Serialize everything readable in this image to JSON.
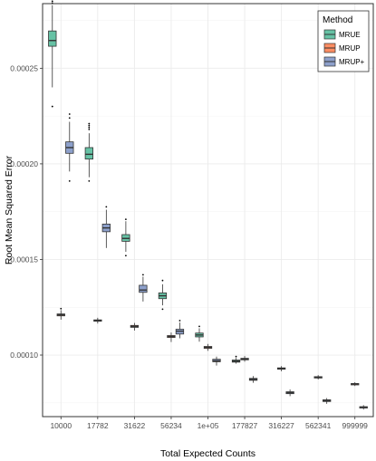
{
  "chart_data": {
    "type": "boxplot",
    "xlabel": "Total Expected Counts",
    "ylabel": "Root Mean Squared Error",
    "categories": [
      "10000",
      "17782",
      "31622",
      "56234",
      "1e+05",
      "177827",
      "316227",
      "562341",
      "999999"
    ],
    "y_ticks": [
      0.0001,
      0.00015,
      0.0002,
      0.00025
    ],
    "y_tick_labels": [
      "0.00010",
      "0.00015",
      "0.00020",
      "0.00025"
    ],
    "ylim": [
      6.78e-05,
      0.0002838
    ],
    "grid": true,
    "legend": {
      "title": "Method",
      "position": "top-right"
    },
    "series": [
      {
        "name": "MRUE",
        "color": "#66c2a5",
        "boxes": [
          {
            "whislo": 0.00024,
            "q1": 0.0002615,
            "med": 0.0002645,
            "q3": 0.0002695,
            "whishi": 0.000283,
            "outliers": [
              0.000284,
              0.000285,
              0.000286,
              0.000287,
              0.000289,
              0.00023
            ]
          },
          {
            "whislo": 0.000193,
            "q1": 0.0002025,
            "med": 0.000205,
            "q3": 0.0002085,
            "whishi": 0.000216,
            "outliers": [
              0.000218,
              0.000219,
              0.00022,
              0.000221,
              0.000191
            ]
          },
          {
            "whislo": 0.000154,
            "q1": 0.0001595,
            "med": 0.000161,
            "q3": 0.000163,
            "whishi": 0.00017,
            "outliers": [
              0.000171,
              0.000152
            ]
          },
          {
            "whislo": 0.000126,
            "q1": 0.0001295,
            "med": 0.000131,
            "q3": 0.0001325,
            "whishi": 0.000137,
            "outliers": [
              0.000139,
              0.000124
            ]
          },
          {
            "whislo": 0.000107,
            "q1": 0.0001095,
            "med": 0.0001105,
            "q3": 0.0001115,
            "whishi": 0.000114,
            "outliers": [
              0.000115
            ]
          },
          {
            "whislo": 9.55e-05,
            "q1": 9.63e-05,
            "med": 9.68e-05,
            "q3": 9.74e-05,
            "whishi": 9.85e-05,
            "outliers": [
              9.92e-05
            ]
          }
        ]
      },
      {
        "name": "MRUP",
        "color": "#fc8d62",
        "boxes": [
          {
            "whislo": 0.0001185,
            "q1": 0.0001205,
            "med": 0.000121,
            "q3": 0.0001215,
            "whishi": 0.0001235,
            "outliers": [
              0.0001243
            ]
          },
          {
            "whislo": 0.0001165,
            "q1": 0.0001177,
            "med": 0.000118,
            "q3": 0.0001184,
            "whishi": 0.0001195,
            "outliers": []
          },
          {
            "whislo": 0.0001128,
            "q1": 0.0001145,
            "med": 0.000115,
            "q3": 0.0001155,
            "whishi": 0.0001168,
            "outliers": []
          },
          {
            "whislo": 0.0001068,
            "q1": 0.0001092,
            "med": 0.0001097,
            "q3": 0.0001102,
            "whishi": 0.0001118,
            "outliers": []
          },
          {
            "whislo": 0.0001022,
            "q1": 0.0001035,
            "med": 0.000104,
            "q3": 0.0001045,
            "whishi": 0.0001058,
            "outliers": []
          },
          {
            "whislo": 9.65e-05,
            "q1": 9.75e-05,
            "med": 9.79e-05,
            "q3": 9.83e-05,
            "whishi": 9.95e-05,
            "outliers": []
          },
          {
            "whislo": 9.15e-05,
            "q1": 9.27e-05,
            "med": 9.3e-05,
            "q3": 9.33e-05,
            "whishi": 9.42e-05,
            "outliers": []
          },
          {
            "whislo": 8.72e-05,
            "q1": 8.81e-05,
            "med": 8.84e-05,
            "q3": 8.87e-05,
            "whishi": 8.95e-05,
            "outliers": []
          },
          {
            "whislo": 8.38e-05,
            "q1": 8.47e-05,
            "med": 8.49e-05,
            "q3": 8.51e-05,
            "whishi": 8.58e-05,
            "outliers": []
          }
        ]
      },
      {
        "name": "MRUP+",
        "color": "#8da0cb",
        "boxes": [
          {
            "whislo": 0.000196,
            "q1": 0.0002055,
            "med": 0.0002085,
            "q3": 0.0002115,
            "whishi": 0.000222,
            "outliers": [
              0.000224,
              0.000226,
              0.000191
            ]
          },
          {
            "whislo": 0.000156,
            "q1": 0.0001645,
            "med": 0.0001665,
            "q3": 0.0001685,
            "whishi": 0.000176,
            "outliers": [
              0.0001775
            ]
          },
          {
            "whislo": 0.000128,
            "q1": 0.0001328,
            "med": 0.000134,
            "q3": 0.0001365,
            "whishi": 0.000141,
            "outliers": [
              0.000142
            ]
          },
          {
            "whislo": 0.0001088,
            "q1": 0.000111,
            "med": 0.0001125,
            "q3": 0.0001135,
            "whishi": 0.000117,
            "outliers": [
              0.000118
            ]
          },
          {
            "whislo": 9.45e-05,
            "q1": 9.65e-05,
            "med": 9.7e-05,
            "q3": 9.78e-05,
            "whishi": 9.92e-05,
            "outliers": []
          },
          {
            "whislo": 8.55e-05,
            "q1": 8.68e-05,
            "med": 8.73e-05,
            "q3": 8.78e-05,
            "whishi": 8.9e-05,
            "outliers": []
          },
          {
            "whislo": 7.85e-05,
            "q1": 7.98e-05,
            "med": 8.03e-05,
            "q3": 8.08e-05,
            "whishi": 8.2e-05,
            "outliers": []
          },
          {
            "whislo": 7.45e-05,
            "q1": 7.57e-05,
            "med": 7.62e-05,
            "q3": 7.66e-05,
            "whishi": 7.75e-05,
            "outliers": []
          },
          {
            "whislo": 7.15e-05,
            "q1": 7.24e-05,
            "med": 7.27e-05,
            "q3": 7.3e-05,
            "whishi": 7.38e-05,
            "outliers": []
          }
        ]
      }
    ],
    "series_category_index": {
      "MRUE": [
        0,
        1,
        2,
        3,
        4,
        5
      ],
      "MRUP": [
        0,
        1,
        2,
        3,
        4,
        5,
        6,
        7,
        8
      ],
      "MRUP+": [
        0,
        1,
        2,
        3,
        4,
        5,
        6,
        7,
        8
      ]
    }
  }
}
